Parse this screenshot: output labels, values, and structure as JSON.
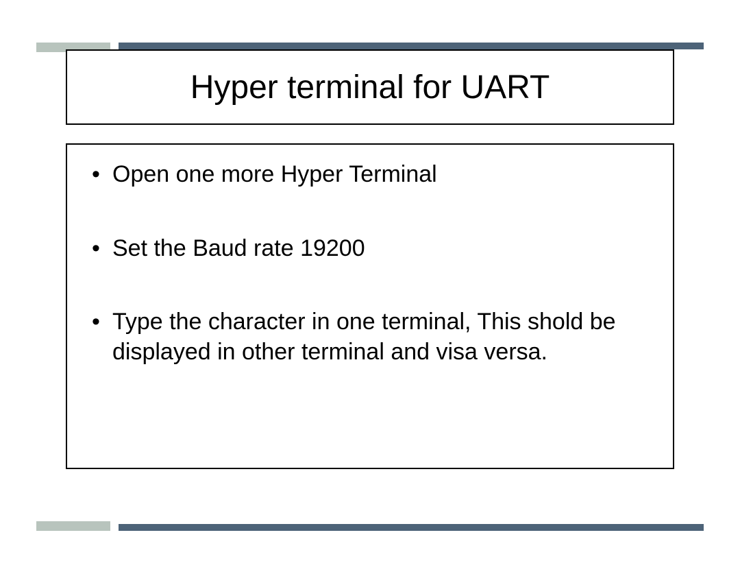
{
  "slide": {
    "title": "Hyper terminal for UART",
    "bullets": [
      "Open one more Hyper Terminal",
      "Set the Baud rate 19200",
      "Type the character in one terminal, This shold be displayed in other terminal and visa versa."
    ]
  },
  "style": {
    "title_fontsize": 48,
    "body_fontsize": 34,
    "text_color": "#000000",
    "border_color": "#000000",
    "background_color": "#ffffff",
    "accent_light": "#b8c4bd",
    "accent_dark": "#4d6378"
  }
}
